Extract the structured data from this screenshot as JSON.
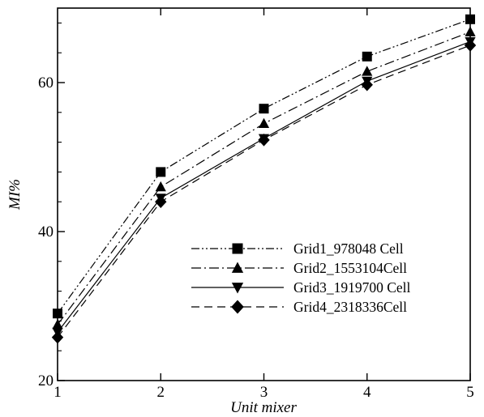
{
  "chart_data": {
    "type": "line",
    "title": "",
    "xlabel": "Unit mixer",
    "ylabel": "MI%",
    "xlim": [
      1,
      5
    ],
    "ylim": [
      20,
      70
    ],
    "xticks": [
      1,
      2,
      3,
      4,
      5
    ],
    "yticks": [
      20,
      40,
      60
    ],
    "x": [
      1,
      2,
      3,
      4,
      5
    ],
    "grid": false,
    "legend_position": "bottom-right",
    "series": [
      {
        "name": "Grid1_978048 Cell",
        "marker": "square",
        "dash": "dash-dot-dot",
        "values": [
          29.0,
          48.0,
          56.5,
          63.5,
          68.5
        ]
      },
      {
        "name": "Grid2_1553104Cell",
        "marker": "triangle-up",
        "dash": "dash-dot",
        "values": [
          27.5,
          46.0,
          54.5,
          61.5,
          66.8
        ]
      },
      {
        "name": "Grid3_1919700 Cell",
        "marker": "triangle-down",
        "dash": "solid",
        "values": [
          26.5,
          44.5,
          52.5,
          60.2,
          65.5
        ]
      },
      {
        "name": "Grid4_2318336Cell",
        "marker": "diamond",
        "dash": "dashed",
        "values": [
          25.8,
          44.0,
          52.3,
          59.7,
          65.0
        ]
      }
    ]
  }
}
